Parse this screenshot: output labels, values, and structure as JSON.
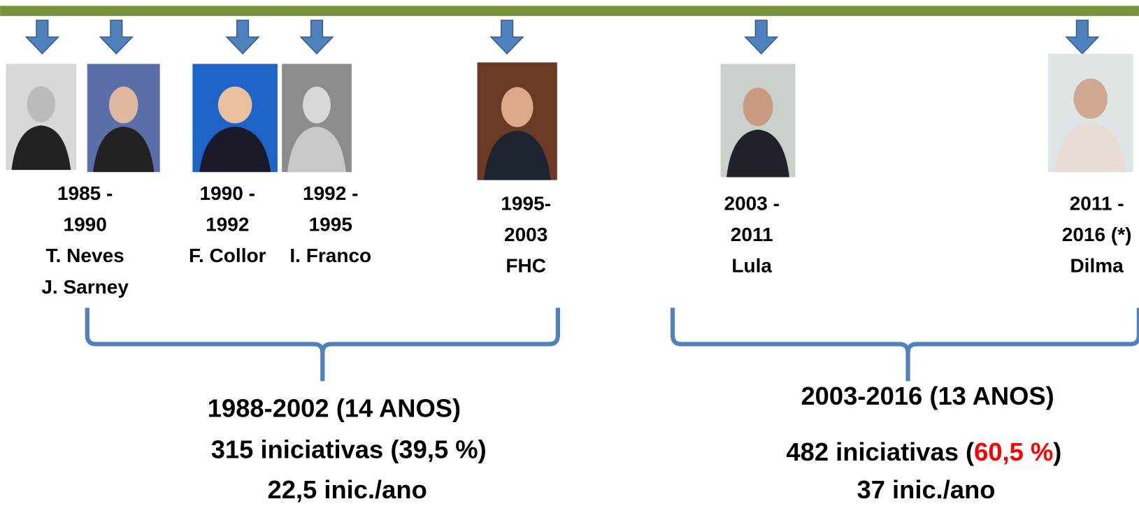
{
  "presidents": [
    {
      "lines": [
        "1985 -",
        "1990",
        "T. Neves",
        "J. Sarney"
      ]
    },
    {
      "lines": [
        "1990 -",
        "1992",
        "F. Collor"
      ]
    },
    {
      "lines": [
        "1992 -",
        "1995",
        "I. Franco"
      ]
    },
    {
      "lines": [
        "1995-",
        "2003",
        "FHC"
      ]
    },
    {
      "lines": [
        "2003 -",
        "2011",
        "Lula"
      ]
    },
    {
      "lines": [
        "2011 -",
        "2016 (*)",
        "Dilma"
      ]
    }
  ],
  "periods": [
    {
      "title": "1988-2002 (14 ANOS)",
      "initiatives": "315 iniciativas (39,5 %)",
      "rate": "22,5 inic./ano"
    },
    {
      "title": "2003-2016 (13 ANOS)",
      "initiatives": {
        "text": "482 iniciativas (",
        "highlight": "60,5 %",
        "end": ")"
      },
      "rate": "37 inic./ano"
    }
  ]
}
